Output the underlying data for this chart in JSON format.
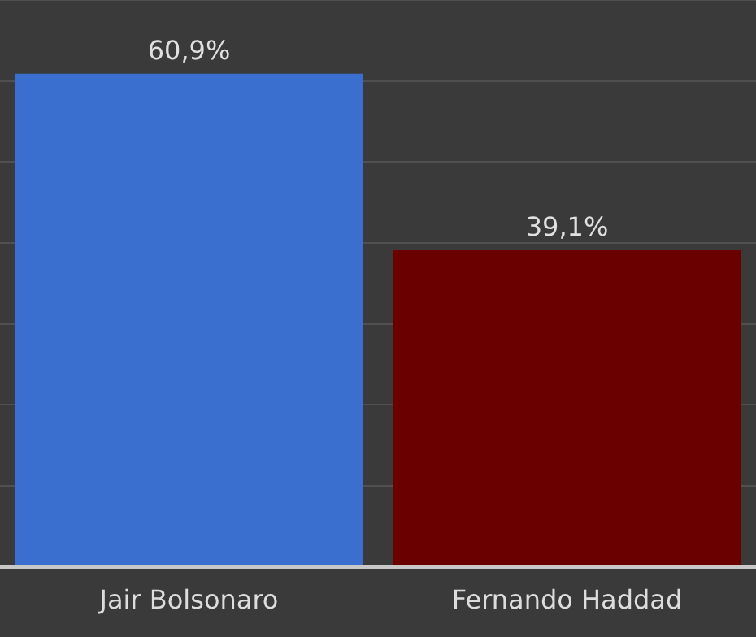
{
  "chart_data": {
    "type": "bar",
    "categories": [
      "Jair Bolsonaro",
      "Fernando Haddad"
    ],
    "values": [
      60.9,
      39.1
    ],
    "colors": [
      "#3a6fd0",
      "#6b0000"
    ],
    "value_labels": [
      "60,9%",
      "39,1%"
    ],
    "ylim": [
      0,
      70
    ],
    "yticks": [
      {
        "value": 0,
        "label": null
      },
      {
        "value": 10,
        "label": null
      },
      {
        "value": 20,
        "label": null
      },
      {
        "value": 30,
        "label": null
      },
      {
        "value": 40,
        "label": null
      },
      {
        "value": 50,
        "label": null
      },
      {
        "value": 60,
        "label": null
      },
      {
        "value": 70,
        "label": null
      }
    ],
    "grid": "y",
    "tick_labels": "x",
    "legend": false
  }
}
